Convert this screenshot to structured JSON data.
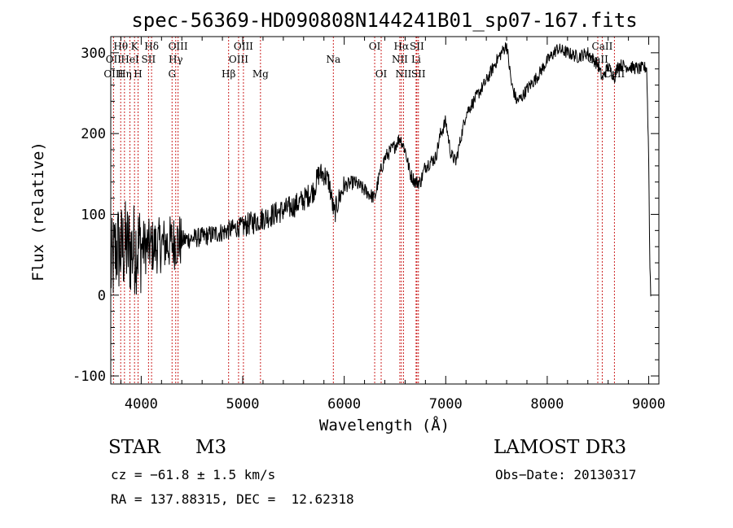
{
  "chart_data": {
    "type": "line",
    "title": "spec-56369-HD090808N144241B01_sp07-167.fits",
    "xlabel": "Wavelength (Å)",
    "ylabel": "Flux (relative)",
    "xlim": [
      3700,
      9100
    ],
    "ylim": [
      -110,
      320
    ],
    "xticks": [
      4000,
      5000,
      6000,
      7000,
      8000,
      9000
    ],
    "yticks": [
      -100,
      0,
      100,
      200,
      300
    ],
    "series": [
      {
        "name": "flux",
        "anchors": [
          [
            3700,
            30
          ],
          [
            3760,
            60
          ],
          [
            3800,
            55
          ],
          [
            3850,
            60
          ],
          [
            3900,
            55
          ],
          [
            3950,
            60
          ],
          [
            4000,
            60
          ],
          [
            4100,
            60
          ],
          [
            4200,
            62
          ],
          [
            4300,
            65
          ],
          [
            4400,
            68
          ],
          [
            4500,
            70
          ],
          [
            4600,
            72
          ],
          [
            4700,
            75
          ],
          [
            4800,
            78
          ],
          [
            4900,
            82
          ],
          [
            5000,
            85
          ],
          [
            5100,
            90
          ],
          [
            5200,
            95
          ],
          [
            5300,
            100
          ],
          [
            5400,
            105
          ],
          [
            5500,
            110
          ],
          [
            5600,
            118
          ],
          [
            5700,
            130
          ],
          [
            5750,
            150
          ],
          [
            5800,
            150
          ],
          [
            5850,
            140
          ],
          [
            5900,
            100
          ],
          [
            5950,
            120
          ],
          [
            6000,
            135
          ],
          [
            6100,
            140
          ],
          [
            6200,
            130
          ],
          [
            6300,
            120
          ],
          [
            6350,
            150
          ],
          [
            6400,
            170
          ],
          [
            6500,
            185
          ],
          [
            6550,
            195
          ],
          [
            6600,
            180
          ],
          [
            6650,
            150
          ],
          [
            6700,
            140
          ],
          [
            6750,
            140
          ],
          [
            6800,
            160
          ],
          [
            6900,
            170
          ],
          [
            6950,
            200
          ],
          [
            7000,
            215
          ],
          [
            7050,
            175
          ],
          [
            7100,
            165
          ],
          [
            7150,
            195
          ],
          [
            7200,
            225
          ],
          [
            7300,
            245
          ],
          [
            7400,
            265
          ],
          [
            7500,
            290
          ],
          [
            7550,
            300
          ],
          [
            7600,
            310
          ],
          [
            7620,
            290
          ],
          [
            7650,
            260
          ],
          [
            7700,
            240
          ],
          [
            7750,
            245
          ],
          [
            7800,
            255
          ],
          [
            7900,
            270
          ],
          [
            8000,
            290
          ],
          [
            8100,
            305
          ],
          [
            8200,
            300
          ],
          [
            8300,
            295
          ],
          [
            8400,
            300
          ],
          [
            8500,
            285
          ],
          [
            8542,
            268
          ],
          [
            8600,
            283
          ],
          [
            8662,
            270
          ],
          [
            8700,
            285
          ],
          [
            8800,
            283
          ],
          [
            8900,
            280
          ],
          [
            8980,
            282
          ],
          [
            9000,
            170
          ],
          [
            9010,
            50
          ],
          [
            9020,
            0
          ]
        ]
      }
    ],
    "spectral_lines": [
      {
        "label": "Hθ",
        "wavelength": 3798,
        "row": 0
      },
      {
        "label": "OII",
        "wavelength": 3727,
        "row": 1
      },
      {
        "label": "OIII",
        "wavelength": 3727,
        "row": 2
      },
      {
        "label": "K",
        "wavelength": 3934,
        "row": 0
      },
      {
        "label": "HeI",
        "wavelength": 3889,
        "row": 1
      },
      {
        "label": "Hη",
        "wavelength": 3835,
        "row": 2
      },
      {
        "label": "SII",
        "wavelength": 4072,
        "row": 1
      },
      {
        "label": "H",
        "wavelength": 3969,
        "row": 2
      },
      {
        "label": "Hδ",
        "wavelength": 4102,
        "row": 0
      },
      {
        "label": "OIII",
        "wavelength": 4363,
        "row": 0
      },
      {
        "label": "Hγ",
        "wavelength": 4340,
        "row": 1
      },
      {
        "label": "G",
        "wavelength": 4304,
        "row": 2
      },
      {
        "label": "Hβ",
        "wavelength": 4861,
        "row": 2
      },
      {
        "label": "OIII",
        "wavelength": 5007,
        "row": 0
      },
      {
        "label": "OIII",
        "wavelength": 4959,
        "row": 1
      },
      {
        "label": "Mg",
        "wavelength": 5175,
        "row": 2
      },
      {
        "label": "Na",
        "wavelength": 5893,
        "row": 1
      },
      {
        "label": "OI",
        "wavelength": 6300,
        "row": 0
      },
      {
        "label": "OI",
        "wavelength": 6364,
        "row": 2
      },
      {
        "label": "Hα",
        "wavelength": 6563,
        "row": 0
      },
      {
        "label": "SII",
        "wavelength": 6716,
        "row": 0
      },
      {
        "label": "NII",
        "wavelength": 6548,
        "row": 1
      },
      {
        "label": "Li",
        "wavelength": 6708,
        "row": 1
      },
      {
        "label": "NII",
        "wavelength": 6584,
        "row": 2
      },
      {
        "label": "SII",
        "wavelength": 6731,
        "row": 2
      },
      {
        "label": "CaII",
        "wavelength": 8542,
        "row": 0
      },
      {
        "label": "CaII",
        "wavelength": 8498,
        "row": 1
      },
      {
        "label": "CaII",
        "wavelength": 8662,
        "row": 2
      }
    ]
  },
  "info": {
    "object_class": "STAR",
    "subclass": "M3",
    "survey": "LAMOST DR3",
    "cz": "cz = −61.8 ± 1.5 km/s",
    "obs_date": "Obs−Date: 20130317",
    "coords": "RA = 137.88315, DEC =  12.62318"
  },
  "colors": {
    "line_markers": "#cc2222",
    "spectrum": "#000000",
    "axes": "#000000"
  }
}
